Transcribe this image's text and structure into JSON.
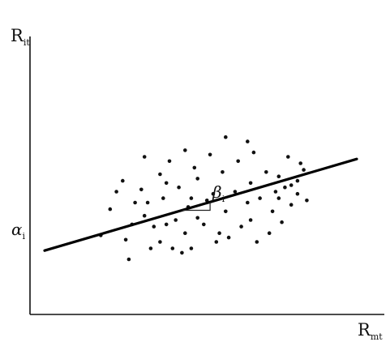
{
  "chart_data": {
    "type": "scatter",
    "ylabel": {
      "main": "R",
      "sub": "it"
    },
    "xlabel": {
      "main": "R",
      "sub": "mt"
    },
    "intercept_label": {
      "main": "α",
      "sub": "i"
    },
    "slope_label": {
      "main": "β",
      "sub": "i"
    },
    "axis_numbers_shown": false,
    "grid": false,
    "regression_line": {
      "intercept": 0.0,
      "slope": 0.42,
      "style": "solid",
      "color": "#000000"
    },
    "point_color": "#111111",
    "xlim": [
      0,
      100
    ],
    "ylim": [
      -30,
      100
    ],
    "points": [
      [
        18,
        7
      ],
      [
        21,
        19
      ],
      [
        23,
        27
      ],
      [
        25,
        32
      ],
      [
        26,
        5
      ],
      [
        27,
        -4
      ],
      [
        28,
        12
      ],
      [
        29,
        22
      ],
      [
        31,
        28
      ],
      [
        32,
        16
      ],
      [
        32,
        43
      ],
      [
        33,
        22
      ],
      [
        34,
        1
      ],
      [
        35,
        11
      ],
      [
        37,
        4
      ],
      [
        37,
        35
      ],
      [
        38,
        24
      ],
      [
        39,
        12
      ],
      [
        39,
        31
      ],
      [
        40,
        41
      ],
      [
        41,
        1
      ],
      [
        42,
        14
      ],
      [
        43,
        29
      ],
      [
        44,
        -1
      ],
      [
        45,
        8
      ],
      [
        45,
        46
      ],
      [
        46,
        20
      ],
      [
        47,
        24
      ],
      [
        47,
        1
      ],
      [
        48,
        38
      ],
      [
        49,
        15
      ],
      [
        49,
        33
      ],
      [
        51,
        12
      ],
      [
        52,
        23
      ],
      [
        53,
        44
      ],
      [
        54,
        26
      ],
      [
        55,
        4
      ],
      [
        56,
        8
      ],
      [
        57,
        36
      ],
      [
        58,
        18
      ],
      [
        58,
        52
      ],
      [
        59,
        6
      ],
      [
        61,
        27
      ],
      [
        62,
        41
      ],
      [
        63,
        11
      ],
      [
        65,
        22
      ],
      [
        65,
        50
      ],
      [
        66,
        31
      ],
      [
        66,
        14
      ],
      [
        67,
        45
      ],
      [
        68,
        4
      ],
      [
        69,
        24
      ],
      [
        71,
        36
      ],
      [
        72,
        8
      ],
      [
        73,
        18
      ],
      [
        74,
        27
      ],
      [
        75,
        34
      ],
      [
        75,
        24
      ],
      [
        76,
        13
      ],
      [
        77,
        29
      ],
      [
        78,
        43
      ],
      [
        79,
        21
      ],
      [
        79,
        30
      ],
      [
        81,
        32
      ],
      [
        81,
        26
      ],
      [
        82,
        40
      ],
      [
        83,
        37
      ],
      [
        84,
        23
      ]
    ]
  }
}
